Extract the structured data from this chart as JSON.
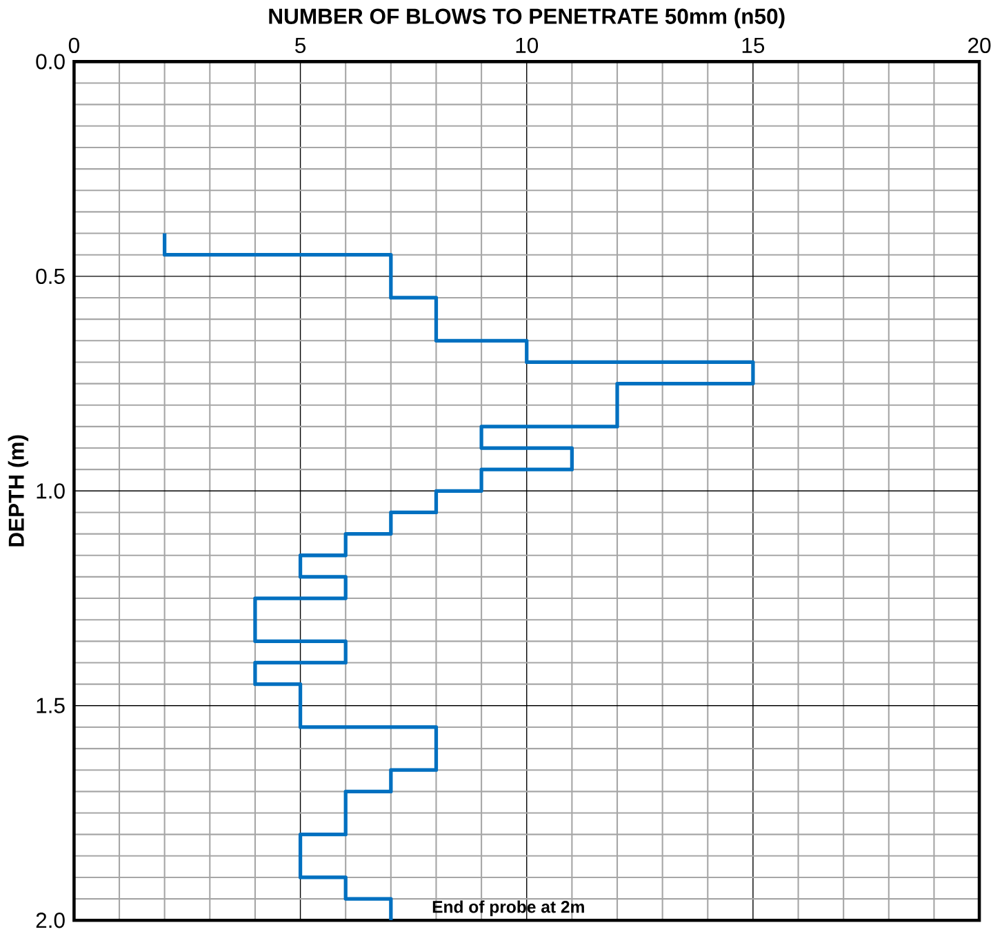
{
  "chart_data": {
    "type": "line",
    "xlabel": "NUMBER OF BLOWS TO PENETRATE 50mm (n50)",
    "ylabel": "DEPTH (m)",
    "xlim": [
      0,
      20
    ],
    "xticks": [
      0,
      5,
      10,
      15,
      20
    ],
    "ylim": [
      2.0,
      0.0
    ],
    "yticks": [
      {
        "value": 0.0,
        "label": "0.0"
      },
      {
        "value": 0.5,
        "label": "0.5"
      },
      {
        "value": 1.0,
        "label": "1.0"
      },
      {
        "value": 1.5,
        "label": "1.5"
      },
      {
        "value": 2.0,
        "label": "2.0"
      }
    ],
    "grid": true,
    "marker": "none",
    "line_style": "solid",
    "series": [
      {
        "color": "#0070c0",
        "x": [
          2,
          2,
          7,
          7,
          8,
          8,
          10,
          10,
          15,
          15,
          12,
          12,
          9,
          9,
          11,
          11,
          9,
          9,
          8,
          8,
          7,
          7,
          6,
          6,
          5,
          5,
          6,
          6,
          4,
          4,
          6,
          6,
          4,
          4,
          5,
          5,
          8,
          8,
          7,
          7,
          6,
          6,
          5,
          5,
          6,
          6,
          7,
          7
        ],
        "values": [
          0.4,
          0.45,
          0.45,
          0.55,
          0.55,
          0.65,
          0.65,
          0.7,
          0.7,
          0.75,
          0.75,
          0.85,
          0.85,
          0.9,
          0.9,
          0.95,
          0.95,
          1.0,
          1.0,
          1.05,
          1.05,
          1.1,
          1.1,
          1.15,
          1.15,
          1.2,
          1.2,
          1.25,
          1.25,
          1.35,
          1.35,
          1.4,
          1.4,
          1.45,
          1.45,
          1.55,
          1.55,
          1.65,
          1.65,
          1.7,
          1.7,
          1.8,
          1.8,
          1.9,
          1.9,
          1.95,
          1.95,
          2.0
        ]
      }
    ],
    "annotations": [
      "End of probe at 2m"
    ]
  }
}
